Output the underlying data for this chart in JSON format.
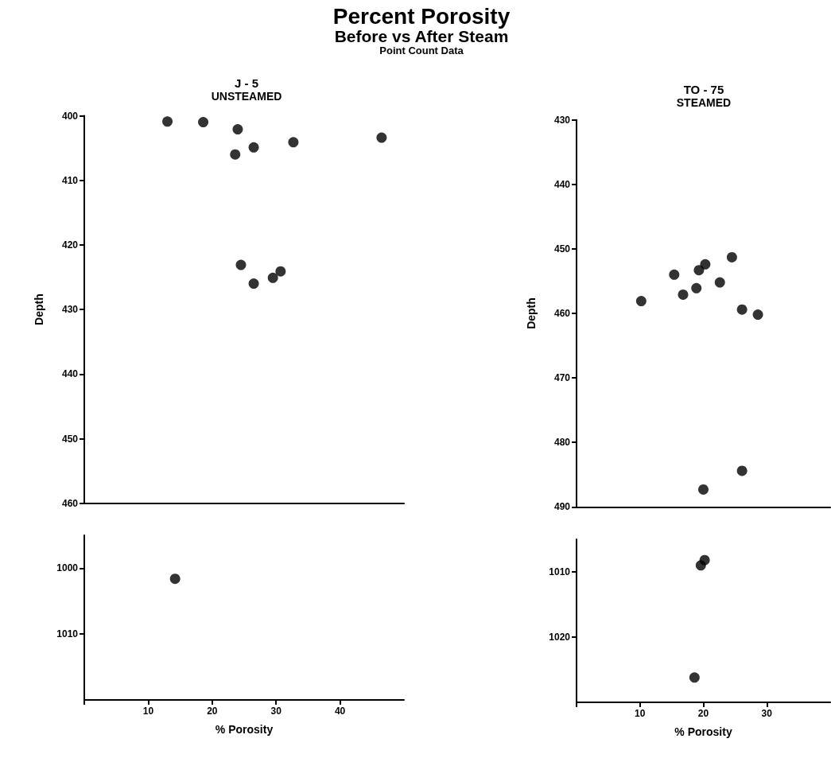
{
  "chart_data": [
    {
      "type": "scatter",
      "title": "J - 5",
      "subtitle": "UNSTEAMED",
      "annotations": [
        "Percent Porosity",
        "Before vs After Steam",
        "Point Count Data"
      ],
      "ylabel": "Depth",
      "marker": "circle",
      "color": "#000000",
      "tick_labels": "y",
      "xlim": [
        0,
        50
      ],
      "ylim": [
        460,
        400
      ],
      "yticks": [
        400,
        410,
        420,
        430,
        440,
        450,
        460
      ],
      "x": [
        13.0,
        18.6,
        24.0,
        23.6,
        26.5,
        32.7,
        46.5,
        24.5,
        26.5,
        29.5,
        30.7
      ],
      "values": [
        400.9,
        401.0,
        402.1,
        406.0,
        404.9,
        404.1,
        403.4,
        423.1,
        426.0,
        425.1,
        424.1
      ]
    },
    {
      "type": "scatter",
      "xlabel": "% Porosity",
      "marker": "circle",
      "color": "#000000",
      "xlim": [
        0,
        50
      ],
      "ylim": [
        1020,
        995
      ],
      "xticks": [
        {
          "value": 0,
          "label": null
        },
        10,
        20,
        30,
        40
      ],
      "yticks": [
        1000,
        1010
      ],
      "x": [
        14.2
      ],
      "values": [
        1001.6
      ]
    },
    {
      "type": "scatter",
      "title": "TO - 75",
      "subtitle": "STEAMED",
      "ylabel": "Depth",
      "marker": "circle",
      "color": "#000000",
      "tick_labels": "y",
      "xlim": [
        0,
        40
      ],
      "ylim": [
        490,
        430
      ],
      "yticks": [
        430,
        440,
        450,
        460,
        470,
        480,
        490
      ],
      "x": [
        15.4,
        19.3,
        20.3,
        24.5,
        22.6,
        10.2,
        16.8,
        18.9,
        26.1,
        28.6,
        26.1,
        20.0
      ],
      "values": [
        454.0,
        453.3,
        452.4,
        451.3,
        455.2,
        458.1,
        457.1,
        456.1,
        459.4,
        460.2,
        484.4,
        487.3
      ]
    },
    {
      "type": "scatter",
      "xlabel": "% Porosity",
      "marker": "circle",
      "color": "#000000",
      "xlim": [
        0,
        40
      ],
      "ylim": [
        1030,
        1005
      ],
      "xticks": [
        {
          "value": 0,
          "label": null
        },
        10,
        20,
        30
      ],
      "yticks": [
        1010,
        1020
      ],
      "x": [
        19.6,
        20.2,
        18.6
      ],
      "values": [
        1009.0,
        1008.2,
        1026.2
      ]
    }
  ]
}
